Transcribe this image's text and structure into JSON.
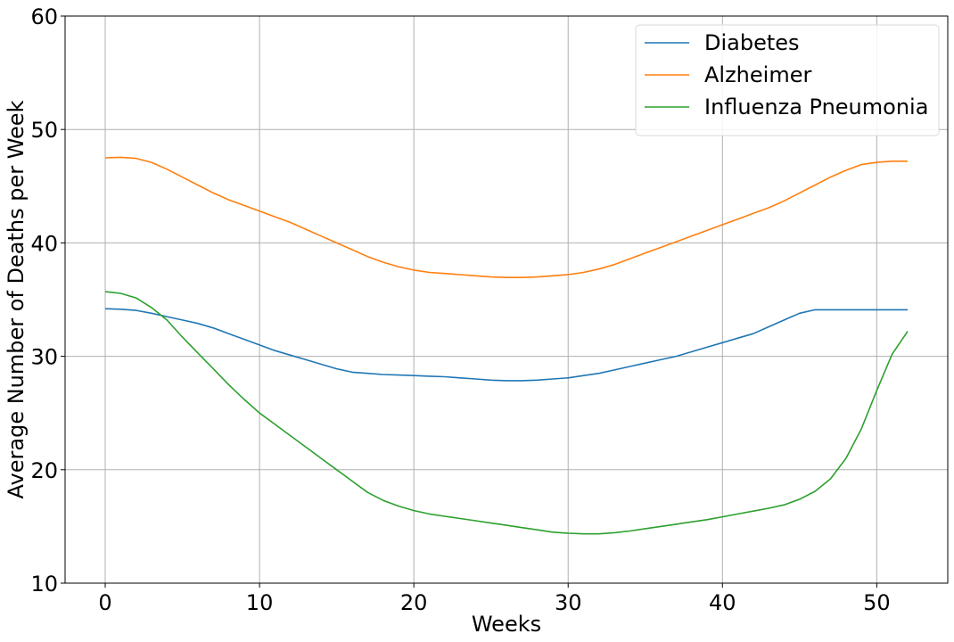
{
  "chart_data": {
    "type": "line",
    "title": "",
    "xlabel": "Weeks",
    "ylabel": "Average Number of Deaths per Week",
    "xlim": [
      -2.6,
      54.6
    ],
    "ylim": [
      10,
      60
    ],
    "xticks": [
      0,
      10,
      20,
      30,
      40,
      50
    ],
    "yticks": [
      10,
      20,
      30,
      40,
      50,
      60
    ],
    "grid": true,
    "legend_position": "top-right",
    "x": [
      0,
      1,
      2,
      3,
      4,
      5,
      6,
      7,
      8,
      9,
      10,
      11,
      12,
      13,
      14,
      15,
      16,
      17,
      18,
      19,
      20,
      21,
      22,
      23,
      24,
      25,
      26,
      27,
      28,
      29,
      30,
      31,
      32,
      33,
      34,
      35,
      36,
      37,
      38,
      39,
      40,
      41,
      42,
      43,
      44,
      45,
      46,
      47,
      48,
      49,
      50,
      51,
      52
    ],
    "series": [
      {
        "name": "Diabetes",
        "color": "#1f77b4",
        "values": [
          34.2,
          34.15,
          34.05,
          33.8,
          33.5,
          33.2,
          32.9,
          32.5,
          32.0,
          31.5,
          31.0,
          30.5,
          30.1,
          29.7,
          29.3,
          28.9,
          28.6,
          28.5,
          28.4,
          28.35,
          28.3,
          28.25,
          28.2,
          28.1,
          28.0,
          27.9,
          27.85,
          27.85,
          27.9,
          28.0,
          28.1,
          28.3,
          28.5,
          28.8,
          29.1,
          29.4,
          29.7,
          30.0,
          30.4,
          30.8,
          31.2,
          31.6,
          32.0,
          32.6,
          33.2,
          33.8,
          34.1,
          34.1,
          34.1,
          34.1,
          34.1,
          34.1,
          34.1
        ]
      },
      {
        "name": "Alzheimer",
        "color": "#ff7f0e",
        "values": [
          47.5,
          47.55,
          47.45,
          47.1,
          46.5,
          45.8,
          45.1,
          44.4,
          43.8,
          43.3,
          42.8,
          42.3,
          41.8,
          41.2,
          40.6,
          40.0,
          39.4,
          38.8,
          38.3,
          37.9,
          37.6,
          37.4,
          37.3,
          37.2,
          37.1,
          37.0,
          36.95,
          36.95,
          37.0,
          37.1,
          37.2,
          37.4,
          37.7,
          38.1,
          38.6,
          39.1,
          39.6,
          40.1,
          40.6,
          41.1,
          41.6,
          42.1,
          42.6,
          43.1,
          43.7,
          44.4,
          45.1,
          45.8,
          46.4,
          46.9,
          47.1,
          47.2,
          47.2
        ]
      },
      {
        "name": "Influenza Pneumonia",
        "color": "#2ca02c",
        "values": [
          35.7,
          35.55,
          35.15,
          34.3,
          33.2,
          31.7,
          30.3,
          28.9,
          27.5,
          26.2,
          25.0,
          24.0,
          23.0,
          22.0,
          21.0,
          20.0,
          19.0,
          18.0,
          17.3,
          16.8,
          16.4,
          16.1,
          15.9,
          15.7,
          15.5,
          15.3,
          15.1,
          14.9,
          14.7,
          14.5,
          14.4,
          14.35,
          14.35,
          14.45,
          14.6,
          14.8,
          15.0,
          15.2,
          15.4,
          15.6,
          15.85,
          16.1,
          16.35,
          16.6,
          16.9,
          17.4,
          18.1,
          19.2,
          21.0,
          23.6,
          27.0,
          30.2,
          32.2
        ]
      }
    ]
  }
}
